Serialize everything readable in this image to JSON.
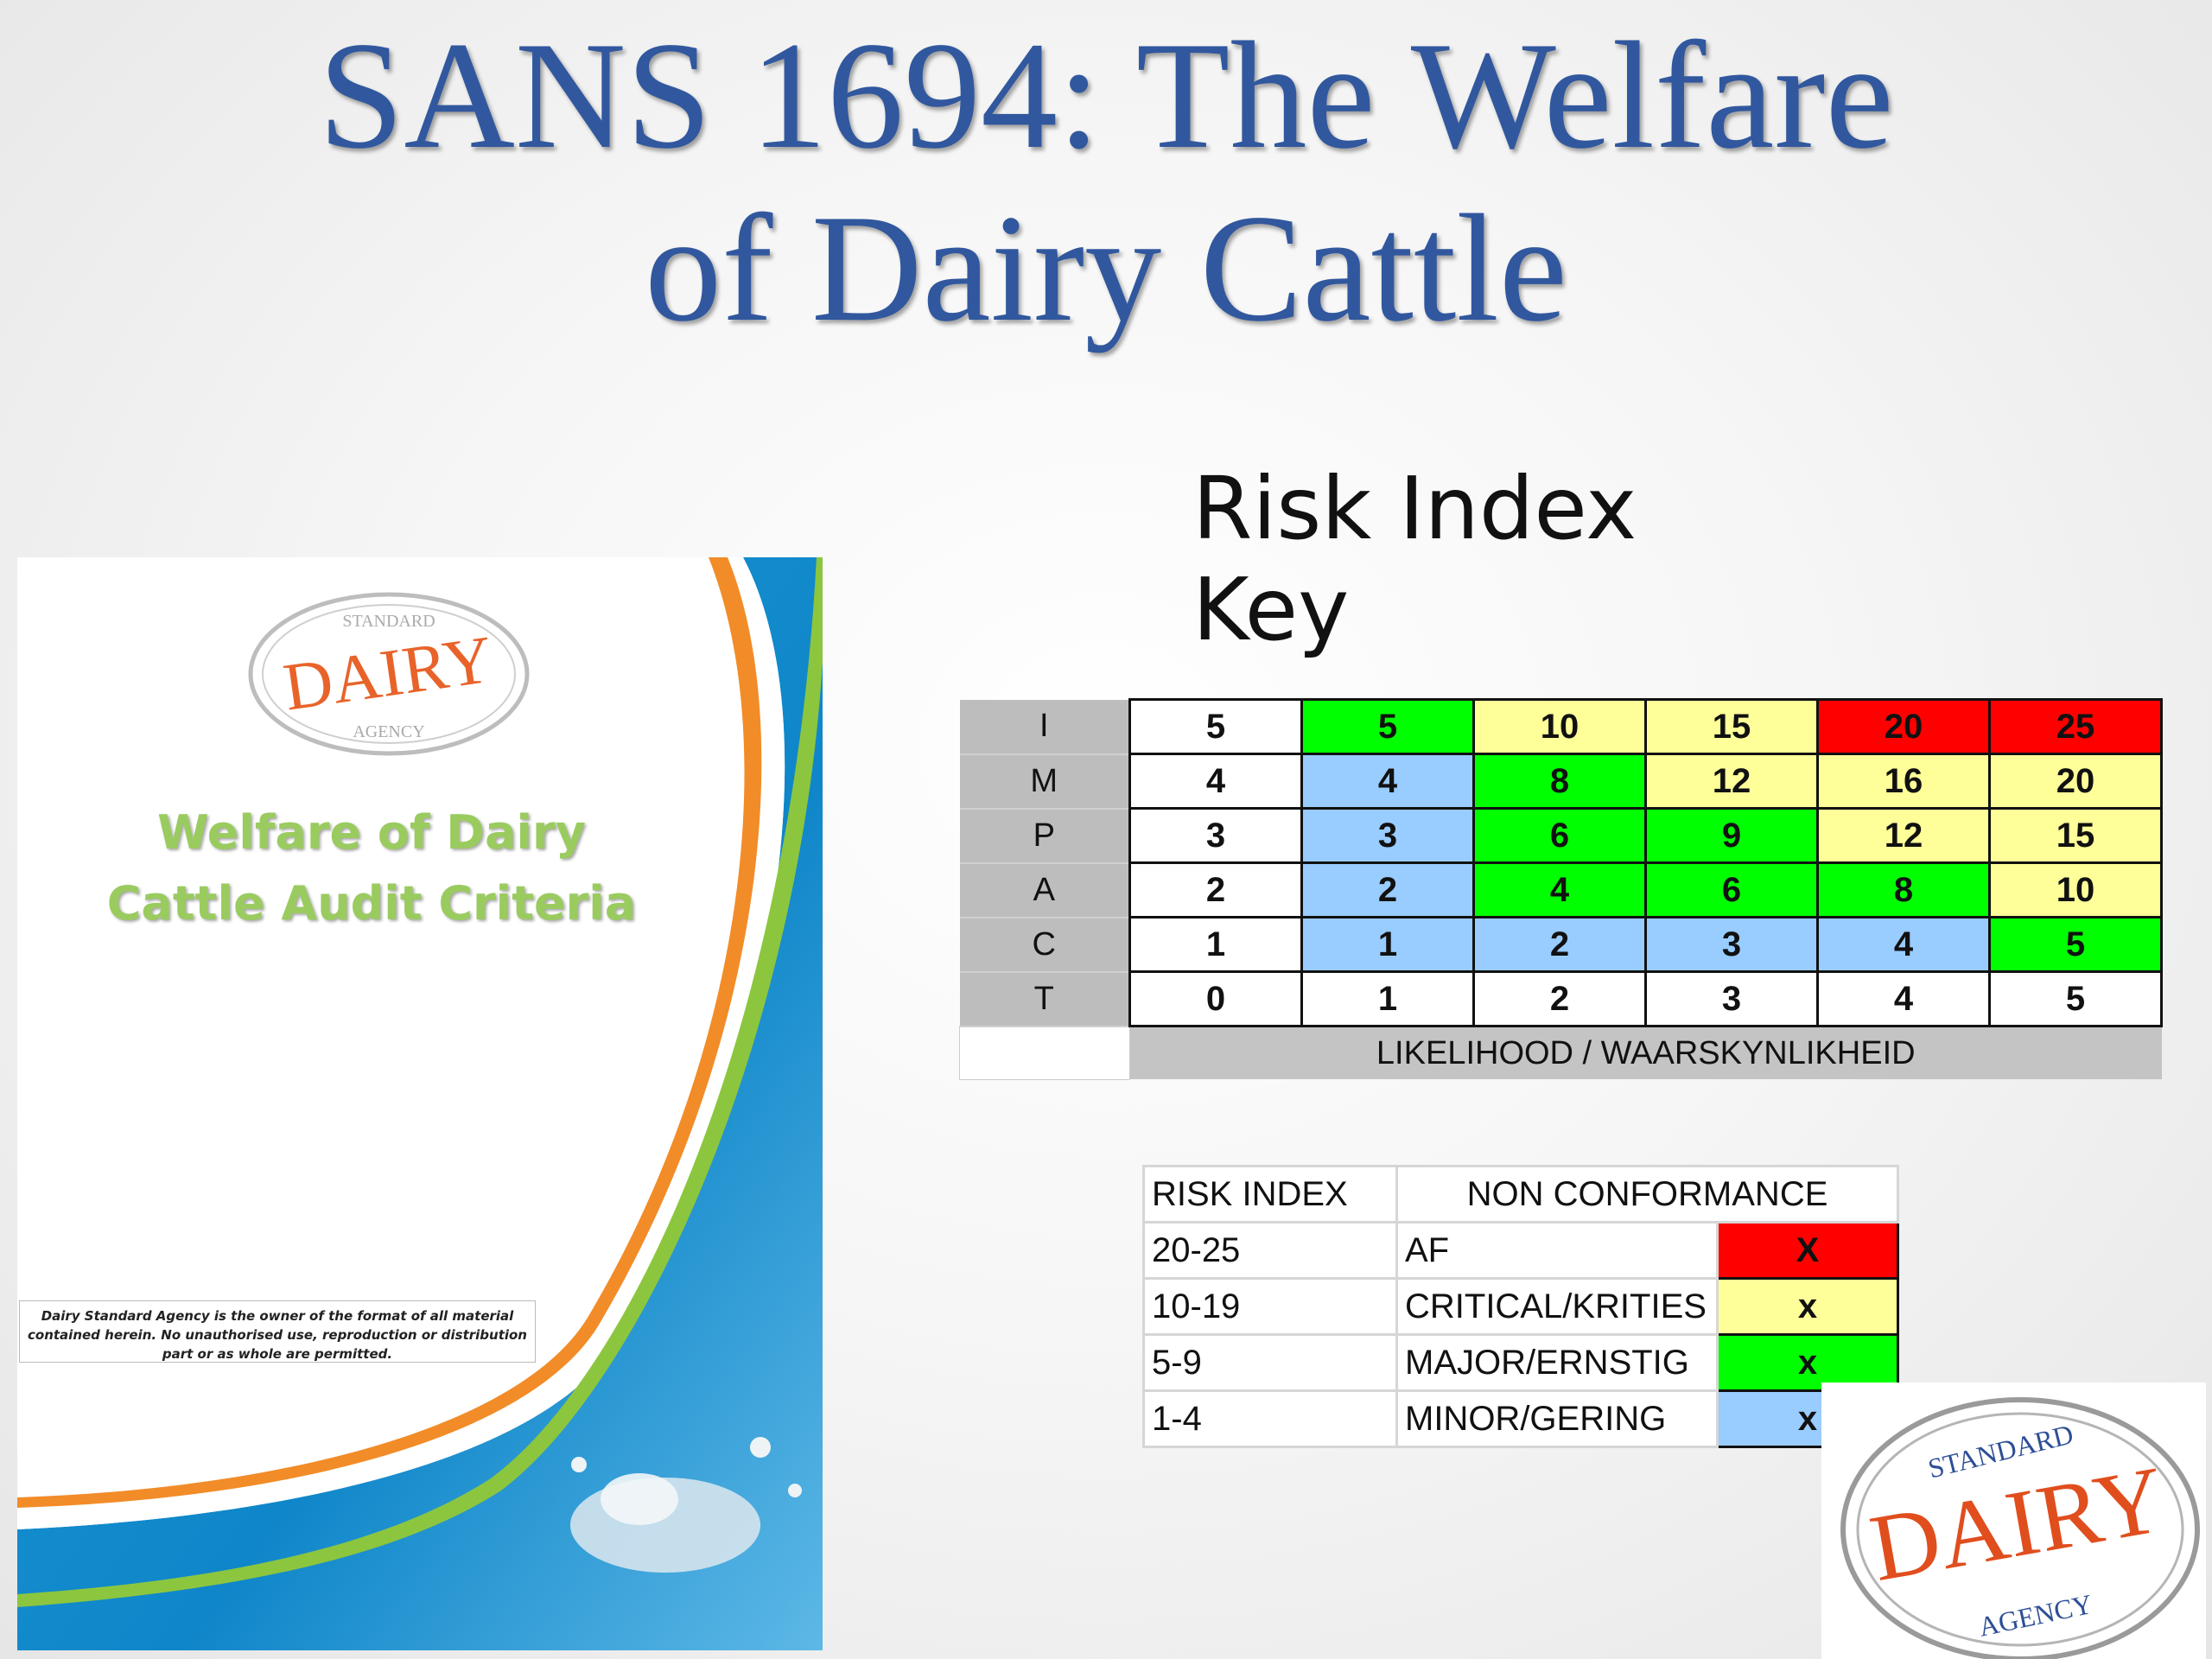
{
  "title": {
    "line1": "SANS 1694: The Welfare",
    "line2": "of Dairy Cattle"
  },
  "subtitle": "Risk Index Key",
  "cover": {
    "logo_top": "STANDARD",
    "logo_main": "DAIRY",
    "logo_bottom": "AGENCY",
    "title_line1": "Welfare of Dairy",
    "title_line2": "Cattle Audit Criteria",
    "note": "Dairy Standard Agency is the owner of the format of all material contained herein. No unauthorised use, reproduction or distribution part or as whole are permitted."
  },
  "matrix": {
    "y_axis_letters": [
      "I",
      "M",
      "P",
      "A",
      "C",
      "T"
    ],
    "x_axis_label": "LIKELIHOOD / WAARSKYNLIKHEID",
    "rows": [
      [
        "5",
        "5",
        "10",
        "15",
        "20",
        "25"
      ],
      [
        "4",
        "4",
        "8",
        "12",
        "16",
        "20"
      ],
      [
        "3",
        "3",
        "6",
        "9",
        "12",
        "15"
      ],
      [
        "2",
        "2",
        "4",
        "6",
        "8",
        "10"
      ],
      [
        "1",
        "1",
        "2",
        "3",
        "4",
        "5"
      ],
      [
        "0",
        "1",
        "2",
        "3",
        "4",
        "5"
      ]
    ],
    "colors": {
      "white": "#ffffff",
      "green": "#00ff00",
      "yellow": "#ffff99",
      "red": "#ff0000",
      "blue": "#99ccff"
    }
  },
  "legend": {
    "header_risk": "RISK INDEX",
    "header_nc": "NON CONFORMANCE",
    "rows": [
      {
        "range": "20-25",
        "label": "AF",
        "mark": "X",
        "color": "#ff0000"
      },
      {
        "range": "10-19",
        "label": "CRITICAL/KRITIES",
        "mark": "x",
        "color": "#ffff99"
      },
      {
        "range": "5-9",
        "label": "MAJOR/ERNSTIG",
        "mark": "x",
        "color": "#00ff00"
      },
      {
        "range": "1-4",
        "label": "MINOR/GERING",
        "mark": "x",
        "color": "#99ccff"
      }
    ]
  },
  "stamp": {
    "top": "STANDARD",
    "main": "DAIRY",
    "bottom": "AGENCY"
  }
}
